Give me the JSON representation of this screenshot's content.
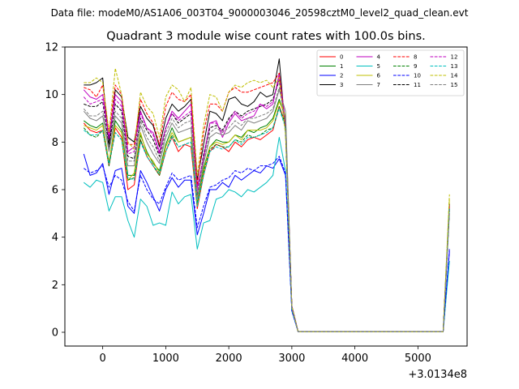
{
  "chart_data": {
    "type": "line",
    "suptitle": "Data file: modeM0/AS1A06_003T04_9000003046_20598cztM0_level2_quad_clean.evt",
    "title": "Quadrant 3 module wise count rates with 100.0s bins.",
    "xlabel": "",
    "ylabel": "",
    "x_offset_label": "+3.0134e8",
    "xlim": [
      -600,
      5780
    ],
    "ylim": [
      -0.58,
      12.0
    ],
    "xticks": [
      0,
      1000,
      2000,
      3000,
      4000,
      5000
    ],
    "yticks": [
      0,
      2,
      4,
      6,
      8,
      10,
      12
    ],
    "grid": false,
    "legend_placement": "top-right",
    "legend_columns": 4,
    "x": [
      -300,
      -200,
      -100,
      0,
      100,
      200,
      300,
      400,
      500,
      600,
      700,
      800,
      900,
      1000,
      1100,
      1200,
      1300,
      1400,
      1500,
      1600,
      1700,
      1800,
      1900,
      2000,
      2100,
      2200,
      2300,
      2400,
      2500,
      2600,
      2700,
      2800,
      2900,
      3000,
      3100,
      3200,
      3300,
      3400,
      3500,
      3600,
      3700,
      3800,
      3900,
      4000,
      4100,
      4200,
      4300,
      4400,
      4500,
      4600,
      4700,
      4800,
      4900,
      5000,
      5100,
      5200,
      5300,
      5400,
      5500
    ],
    "series": [
      {
        "name": "0",
        "color": "#ff0000",
        "dash": false,
        "values": [
          8.8,
          8.5,
          8.4,
          8.5,
          7.0,
          8.6,
          8.2,
          6.0,
          6.2,
          8.1,
          7.4,
          7.0,
          6.6,
          7.6,
          8.2,
          7.6,
          7.9,
          7.8,
          5.2,
          6.6,
          7.6,
          7.9,
          7.8,
          7.6,
          8.0,
          7.8,
          8.1,
          8.2,
          8.1,
          8.3,
          8.5,
          9.5,
          8.8,
          1.0,
          0.02,
          0.02,
          0.02,
          0.02,
          0.02,
          0.02,
          0.02,
          0.02,
          0.02,
          0.02,
          0.02,
          0.02,
          0.02,
          0.02,
          0.02,
          0.02,
          0.02,
          0.02,
          0.02,
          0.02,
          0.02,
          0.02,
          0.02,
          0.02,
          5.2
        ]
      },
      {
        "name": "1",
        "color": "#008000",
        "dash": false,
        "values": [
          8.9,
          8.7,
          8.6,
          8.8,
          7.1,
          8.9,
          8.5,
          6.6,
          6.6,
          8.3,
          7.6,
          7.1,
          6.8,
          7.9,
          8.6,
          8.0,
          8.1,
          8.2,
          5.4,
          6.9,
          7.8,
          8.1,
          8.0,
          8.0,
          8.3,
          8.2,
          8.5,
          8.4,
          8.6,
          8.7,
          9.0,
          9.8,
          9.0,
          1.1,
          0.02,
          0.02,
          0.02,
          0.02,
          0.02,
          0.02,
          0.02,
          0.02,
          0.02,
          0.02,
          0.02,
          0.02,
          0.02,
          0.02,
          0.02,
          0.02,
          0.02,
          0.02,
          0.02,
          0.02,
          0.02,
          0.02,
          0.02,
          0.02,
          5.4
        ]
      },
      {
        "name": "2",
        "color": "#0000ff",
        "dash": false,
        "values": [
          7.5,
          6.6,
          6.7,
          7.1,
          5.8,
          6.8,
          6.9,
          5.3,
          5.0,
          6.8,
          6.3,
          5.7,
          5.1,
          6.0,
          6.5,
          6.1,
          6.4,
          6.4,
          4.1,
          5.0,
          6.0,
          6.0,
          6.3,
          6.1,
          6.6,
          6.4,
          6.6,
          6.8,
          6.7,
          7.0,
          6.9,
          7.3,
          6.6,
          0.9,
          0.02,
          0.02,
          0.02,
          0.02,
          0.02,
          0.02,
          0.02,
          0.02,
          0.02,
          0.02,
          0.02,
          0.02,
          0.02,
          0.02,
          0.02,
          0.02,
          0.02,
          0.02,
          0.02,
          0.02,
          0.02,
          0.02,
          0.02,
          0.02,
          3.4
        ]
      },
      {
        "name": "3",
        "color": "#000000",
        "dash": false,
        "values": [
          10.4,
          10.4,
          10.5,
          10.7,
          7.9,
          10.2,
          9.9,
          8.2,
          8.0,
          9.5,
          9.0,
          8.7,
          7.8,
          9.0,
          9.6,
          9.3,
          9.5,
          9.8,
          6.4,
          7.9,
          9.3,
          9.2,
          8.9,
          9.8,
          9.9,
          9.6,
          9.5,
          9.7,
          10.1,
          9.9,
          10.0,
          11.5,
          8.4,
          1.1,
          0.02,
          0.02,
          0.02,
          0.02,
          0.02,
          0.02,
          0.02,
          0.02,
          0.02,
          0.02,
          0.02,
          0.02,
          0.02,
          0.02,
          0.02,
          0.02,
          0.02,
          0.02,
          0.02,
          0.02,
          0.02,
          0.02,
          0.02,
          0.02,
          5.4
        ]
      },
      {
        "name": "4",
        "color": "#bf00bf",
        "dash": false,
        "values": [
          10.2,
          9.9,
          9.8,
          10.0,
          8.2,
          10.0,
          9.7,
          7.6,
          7.8,
          9.3,
          8.6,
          8.4,
          7.6,
          8.6,
          9.3,
          9.0,
          9.3,
          9.6,
          6.1,
          7.3,
          8.8,
          8.9,
          8.2,
          8.8,
          9.2,
          8.9,
          9.0,
          9.1,
          9.6,
          9.4,
          9.6,
          10.9,
          8.8,
          1.1,
          0.02,
          0.02,
          0.02,
          0.02,
          0.02,
          0.02,
          0.02,
          0.02,
          0.02,
          0.02,
          0.02,
          0.02,
          0.02,
          0.02,
          0.02,
          0.02,
          0.02,
          0.02,
          0.02,
          0.02,
          0.02,
          0.02,
          0.02,
          0.02,
          5.4
        ]
      },
      {
        "name": "5",
        "color": "#00bfbf",
        "dash": false,
        "values": [
          6.3,
          6.1,
          6.4,
          6.3,
          5.1,
          5.7,
          5.7,
          4.7,
          4.0,
          5.6,
          5.3,
          4.5,
          4.6,
          4.5,
          5.9,
          5.4,
          5.7,
          5.8,
          3.5,
          4.6,
          4.7,
          5.6,
          5.7,
          6.0,
          5.9,
          5.7,
          6.0,
          5.9,
          6.1,
          6.3,
          6.6,
          8.2,
          6.8,
          0.9,
          0.02,
          0.02,
          0.02,
          0.02,
          0.02,
          0.02,
          0.02,
          0.02,
          0.02,
          0.02,
          0.02,
          0.02,
          0.02,
          0.02,
          0.02,
          0.02,
          0.02,
          0.02,
          0.02,
          0.02,
          0.02,
          0.02,
          0.02,
          0.02,
          3.0
        ]
      },
      {
        "name": "6",
        "color": "#bfbf00",
        "dash": false,
        "values": [
          8.7,
          8.6,
          8.5,
          8.7,
          7.2,
          8.7,
          8.4,
          6.4,
          6.7,
          8.4,
          7.5,
          7.2,
          6.7,
          7.8,
          8.4,
          8.0,
          8.1,
          8.2,
          5.3,
          6.8,
          7.8,
          8.0,
          7.9,
          8.0,
          8.3,
          8.1,
          8.5,
          8.5,
          8.5,
          8.6,
          8.9,
          9.7,
          9.1,
          1.0,
          0.02,
          0.02,
          0.02,
          0.02,
          0.02,
          0.02,
          0.02,
          0.02,
          0.02,
          0.02,
          0.02,
          0.02,
          0.02,
          0.02,
          0.02,
          0.02,
          0.02,
          0.02,
          0.02,
          0.02,
          0.02,
          0.02,
          0.02,
          0.02,
          5.6
        ]
      },
      {
        "name": "7",
        "color": "#808080",
        "dash": false,
        "values": [
          9.3,
          9.0,
          8.9,
          9.1,
          7.6,
          9.1,
          8.8,
          7.0,
          7.0,
          8.7,
          8.0,
          7.5,
          7.1,
          8.2,
          8.8,
          8.4,
          8.5,
          8.6,
          5.6,
          7.1,
          8.2,
          8.4,
          8.3,
          8.4,
          8.7,
          8.5,
          8.9,
          8.8,
          8.9,
          9.0,
          9.3,
          10.2,
          9.3,
          1.0,
          0.02,
          0.02,
          0.02,
          0.02,
          0.02,
          0.02,
          0.02,
          0.02,
          0.02,
          0.02,
          0.02,
          0.02,
          0.02,
          0.02,
          0.02,
          0.02,
          0.02,
          0.02,
          0.02,
          0.02,
          0.02,
          0.02,
          0.02,
          0.02,
          5.0
        ]
      },
      {
        "name": "8",
        "color": "#ff0000",
        "dash": true,
        "values": [
          10.3,
          10.2,
          9.9,
          10.4,
          8.4,
          10.4,
          10.0,
          7.9,
          7.9,
          9.8,
          9.2,
          8.8,
          7.9,
          9.5,
          10.1,
          9.8,
          9.7,
          10.0,
          6.2,
          8.4,
          9.6,
          9.6,
          9.3,
          10.1,
          10.3,
          10.1,
          10.1,
          10.2,
          10.3,
          10.4,
          10.5,
          10.9,
          8.6,
          1.1,
          0.02,
          0.02,
          0.02,
          0.02,
          0.02,
          0.02,
          0.02,
          0.02,
          0.02,
          0.02,
          0.02,
          0.02,
          0.02,
          0.02,
          0.02,
          0.02,
          0.02,
          0.02,
          0.02,
          0.02,
          0.02,
          0.02,
          0.02,
          0.02,
          5.3
        ]
      },
      {
        "name": "9",
        "color": "#008000",
        "dash": true,
        "values": [
          8.6,
          8.3,
          8.2,
          8.5,
          7.0,
          8.4,
          8.1,
          6.4,
          6.5,
          8.1,
          7.4,
          7.0,
          6.6,
          7.6,
          8.3,
          7.8,
          7.9,
          8.0,
          5.3,
          6.7,
          7.7,
          7.9,
          7.8,
          7.8,
          8.1,
          8.0,
          8.3,
          8.2,
          8.3,
          8.5,
          8.6,
          9.5,
          8.7,
          1.0,
          0.02,
          0.02,
          0.02,
          0.02,
          0.02,
          0.02,
          0.02,
          0.02,
          0.02,
          0.02,
          0.02,
          0.02,
          0.02,
          0.02,
          0.02,
          0.02,
          0.02,
          0.02,
          0.02,
          0.02,
          0.02,
          0.02,
          0.02,
          0.02,
          5.2
        ]
      },
      {
        "name": "10",
        "color": "#0000ff",
        "dash": true,
        "values": [
          6.9,
          6.7,
          6.8,
          7.0,
          6.1,
          6.6,
          6.4,
          5.5,
          5.1,
          6.6,
          6.0,
          5.6,
          5.4,
          6.1,
          6.7,
          6.4,
          6.5,
          6.6,
          4.4,
          5.3,
          6.1,
          6.2,
          6.4,
          6.5,
          6.8,
          6.7,
          6.9,
          6.8,
          7.0,
          7.0,
          7.1,
          7.4,
          6.7,
          0.9,
          0.02,
          0.02,
          0.02,
          0.02,
          0.02,
          0.02,
          0.02,
          0.02,
          0.02,
          0.02,
          0.02,
          0.02,
          0.02,
          0.02,
          0.02,
          0.02,
          0.02,
          0.02,
          0.02,
          0.02,
          0.02,
          0.02,
          0.02,
          0.02,
          3.5
        ]
      },
      {
        "name": "11",
        "color": "#000000",
        "dash": true,
        "values": [
          9.6,
          9.5,
          9.5,
          9.7,
          7.8,
          9.6,
          9.3,
          7.4,
          7.3,
          9.0,
          8.5,
          8.1,
          7.4,
          8.6,
          9.2,
          8.8,
          9.0,
          9.2,
          5.8,
          7.5,
          8.6,
          8.7,
          8.5,
          9.0,
          9.3,
          9.1,
          9.3,
          9.4,
          9.5,
          9.6,
          9.8,
          10.6,
          8.6,
          1.1,
          0.02,
          0.02,
          0.02,
          0.02,
          0.02,
          0.02,
          0.02,
          0.02,
          0.02,
          0.02,
          0.02,
          0.02,
          0.02,
          0.02,
          0.02,
          0.02,
          0.02,
          0.02,
          0.02,
          0.02,
          0.02,
          0.02,
          0.02,
          0.02,
          5.1
        ]
      },
      {
        "name": "12",
        "color": "#bf00bf",
        "dash": true,
        "values": [
          9.9,
          9.6,
          9.7,
          9.8,
          8.1,
          9.8,
          9.5,
          7.5,
          7.6,
          9.2,
          8.6,
          8.3,
          7.5,
          8.6,
          9.2,
          8.9,
          9.1,
          9.3,
          5.9,
          7.4,
          8.8,
          8.8,
          8.4,
          8.9,
          9.3,
          9.0,
          9.2,
          9.3,
          9.6,
          9.5,
          9.7,
          10.7,
          8.7,
          1.1,
          0.02,
          0.02,
          0.02,
          0.02,
          0.02,
          0.02,
          0.02,
          0.02,
          0.02,
          0.02,
          0.02,
          0.02,
          0.02,
          0.02,
          0.02,
          0.02,
          0.02,
          0.02,
          0.02,
          0.02,
          0.02,
          0.02,
          0.02,
          0.02,
          5.3
        ]
      },
      {
        "name": "13",
        "color": "#00bfbf",
        "dash": true,
        "values": [
          8.5,
          8.3,
          8.3,
          8.5,
          7.1,
          8.4,
          8.1,
          6.5,
          6.4,
          8.0,
          7.4,
          7.0,
          6.7,
          7.6,
          8.2,
          7.8,
          7.9,
          8.0,
          5.3,
          6.6,
          7.6,
          7.8,
          7.7,
          7.8,
          8.1,
          7.9,
          8.2,
          8.2,
          8.3,
          8.4,
          8.6,
          9.4,
          8.6,
          1.0,
          0.02,
          0.02,
          0.02,
          0.02,
          0.02,
          0.02,
          0.02,
          0.02,
          0.02,
          0.02,
          0.02,
          0.02,
          0.02,
          0.02,
          0.02,
          0.02,
          0.02,
          0.02,
          0.02,
          0.02,
          0.02,
          0.02,
          0.02,
          0.02,
          5.2
        ]
      },
      {
        "name": "14",
        "color": "#bfbf00",
        "dash": true,
        "values": [
          10.5,
          10.5,
          10.7,
          10.5,
          8.4,
          11.1,
          10.0,
          8.0,
          7.7,
          10.1,
          9.5,
          9.2,
          8.2,
          9.9,
          10.4,
          10.2,
          9.7,
          10.3,
          6.6,
          8.7,
          10.0,
          9.9,
          9.3,
          10.1,
          10.4,
          10.3,
          10.5,
          10.6,
          10.5,
          10.6,
          10.3,
          10.7,
          8.3,
          1.1,
          0.02,
          0.02,
          0.02,
          0.02,
          0.02,
          0.02,
          0.02,
          0.02,
          0.02,
          0.02,
          0.02,
          0.02,
          0.02,
          0.02,
          0.02,
          0.02,
          0.02,
          0.02,
          0.02,
          0.02,
          0.02,
          0.02,
          0.02,
          0.02,
          5.8
        ]
      },
      {
        "name": "15",
        "color": "#808080",
        "dash": true,
        "values": [
          9.4,
          9.1,
          9.1,
          9.3,
          7.7,
          9.3,
          9.0,
          7.2,
          7.2,
          8.9,
          8.2,
          7.8,
          7.2,
          8.4,
          9.0,
          8.6,
          8.8,
          8.9,
          5.7,
          7.2,
          8.4,
          8.6,
          8.4,
          8.6,
          8.9,
          8.7,
          9.0,
          9.0,
          9.1,
          9.2,
          9.4,
          10.3,
          8.8,
          1.0,
          0.02,
          0.02,
          0.02,
          0.02,
          0.02,
          0.02,
          0.02,
          0.02,
          0.02,
          0.02,
          0.02,
          0.02,
          0.02,
          0.02,
          0.02,
          0.02,
          0.02,
          0.02,
          0.02,
          0.02,
          0.02,
          0.02,
          0.02,
          0.02,
          5.1
        ]
      }
    ]
  }
}
